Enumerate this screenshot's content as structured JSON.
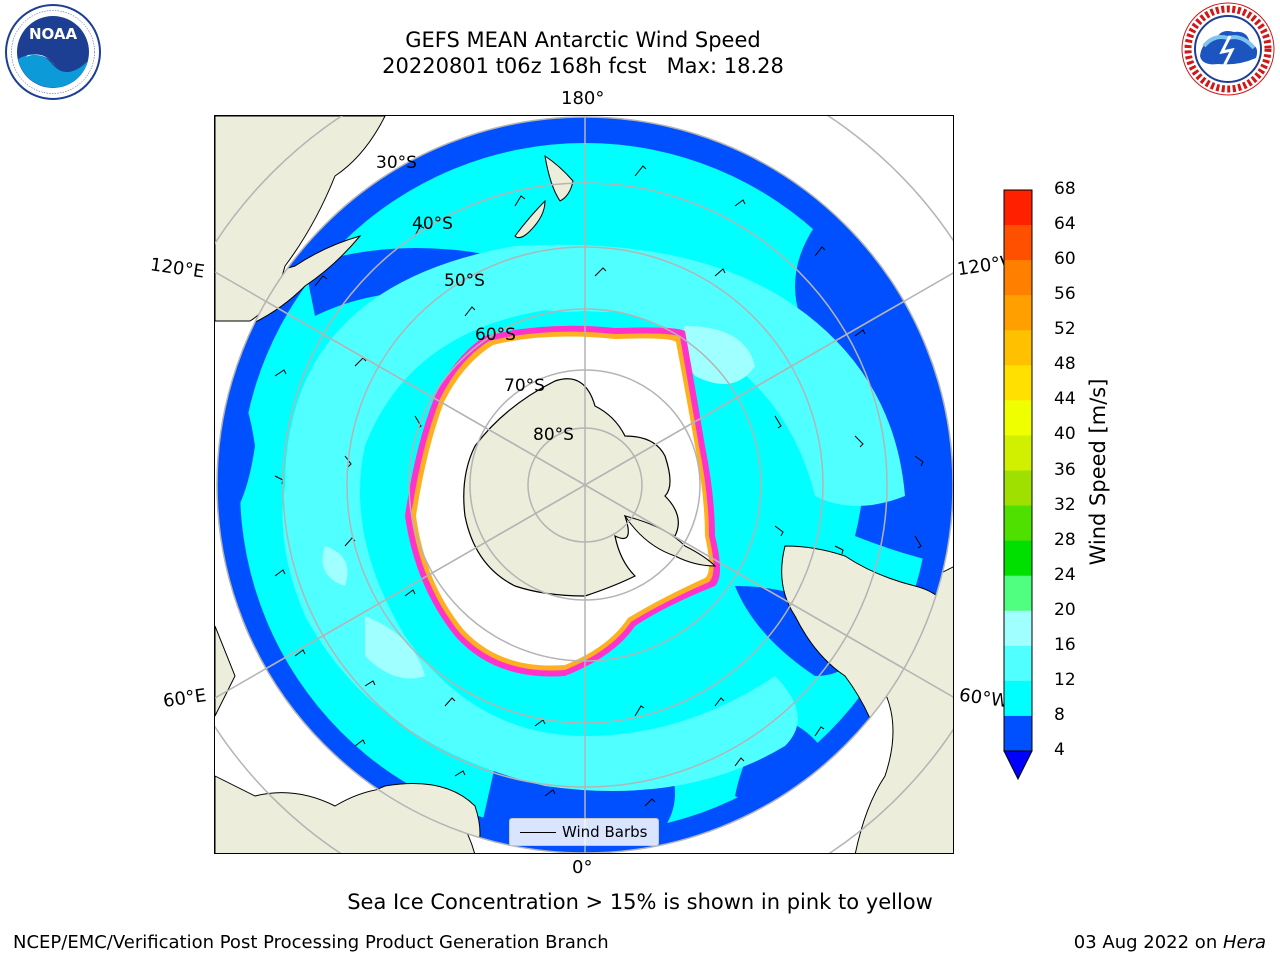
{
  "title": {
    "line1": "GEFS MEAN Antarctic Wind Speed",
    "line2": "20220801 t06z 168h fcst   Max: 18.28"
  },
  "logos": {
    "left": {
      "name": "NOAA",
      "ring_text": "NATIONAL OCEANIC AND ATMOSPHERIC ADMINISTRATION · U.S. DEPARTMENT OF COMMERCE"
    },
    "right": {
      "name": "NATIONAL WEATHER SERVICE"
    }
  },
  "map": {
    "projection": "South Polar Stereographic",
    "longitude_labels": {
      "top": "180°",
      "bottom": "0°",
      "upper_left": "120°E",
      "lower_left": "60°E",
      "upper_right": "120°W",
      "lower_right": "60°W"
    },
    "latitude_labels": [
      "30°S",
      "40°S",
      "50°S",
      "60°S",
      "70°S",
      "80°S"
    ],
    "legend": {
      "entry": "Wind Barbs"
    },
    "colors": {
      "land": "#ededdc",
      "ice_area": "#ffffff",
      "ice_edge": "#ff33cc",
      "ice_edge_inner": "#ffb020",
      "gridline": "#b4b4b4",
      "coast": "#000000"
    }
  },
  "colorbar": {
    "label": "Wind Speed [m/s]",
    "ticks": [
      "4",
      "8",
      "12",
      "16",
      "20",
      "24",
      "28",
      "32",
      "36",
      "40",
      "44",
      "48",
      "52",
      "56",
      "60",
      "64",
      "68"
    ],
    "colors": [
      "#0050ff",
      "#00ffff",
      "#50ffff",
      "#a0ffff",
      "#50ff80",
      "#00e000",
      "#50e000",
      "#a0e000",
      "#d0f000",
      "#f0ff00",
      "#ffe000",
      "#ffc000",
      "#ffa000",
      "#ff8000",
      "#ff5000",
      "#ff2000",
      "#ff0000"
    ],
    "under_color": "#0000ff"
  },
  "chart_data": {
    "type": "heatmap",
    "title": "GEFS MEAN Antarctic Wind Speed",
    "subtitle": "20220801 t06z 168h fcst   Max: 18.28",
    "max": 18.28,
    "units": "m/s",
    "colorbar_range": [
      4,
      68
    ],
    "colorbar_ticks": [
      4,
      8,
      12,
      16,
      20,
      24,
      28,
      32,
      36,
      40,
      44,
      48,
      52,
      56,
      60,
      64,
      68
    ],
    "note": "Sea Ice Concentration > 15% is shown in pink to yellow"
  },
  "footer": {
    "left": "NCEP/EMC/Verification Post Processing Product Generation Branch",
    "right_date": "03 Aug 2022 on ",
    "right_machine": "Hera"
  }
}
